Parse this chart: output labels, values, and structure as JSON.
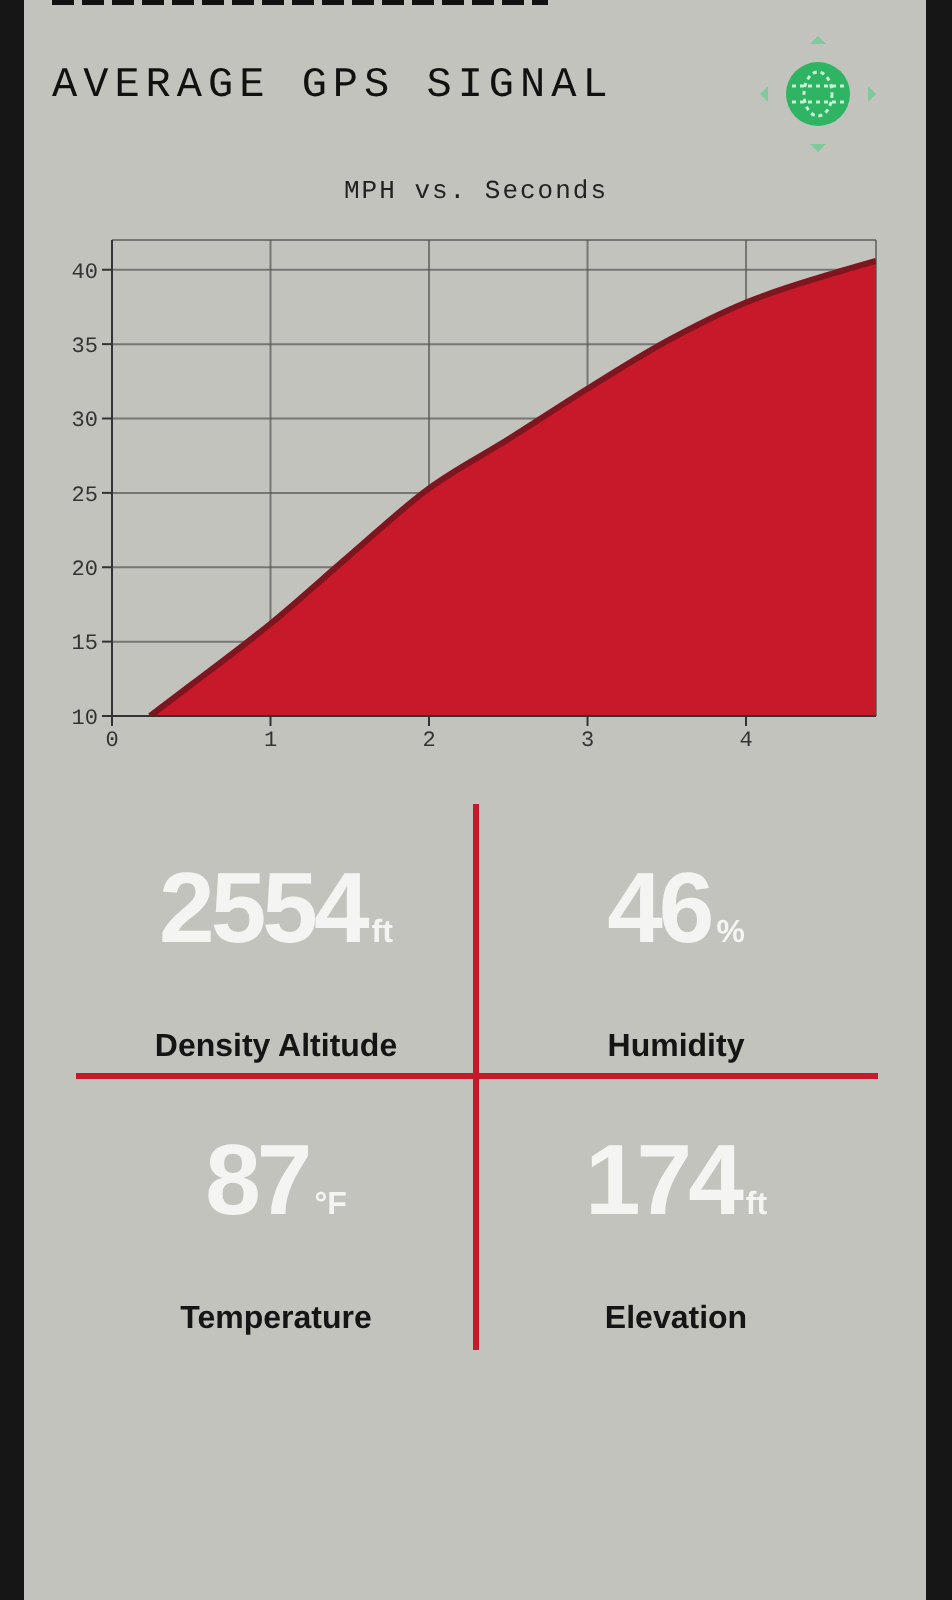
{
  "chart_data": [
    {
      "type": "area",
      "title": "AVERAGE GPS SIGNAL",
      "subtitle": "MPH vs. Seconds",
      "x": [
        0.24,
        0.5,
        1,
        1.5,
        2,
        2.5,
        3,
        3.5,
        4,
        4.5,
        4.82
      ],
      "values": [
        10,
        12.1,
        16.2,
        20.8,
        25.3,
        28.6,
        32,
        35.2,
        37.8,
        39.6,
        40.6
      ],
      "color": "#c8192b",
      "xlim": [
        0,
        4.82
      ],
      "xticks": [
        0,
        1,
        2,
        3,
        4
      ],
      "ylim": [
        10,
        42
      ],
      "yticks": [
        10,
        15,
        20,
        25,
        30,
        35,
        40
      ],
      "grid": true,
      "legend": false,
      "marker": "none",
      "line_style": "solid"
    },
    {
      "type": "other",
      "categories": [
        "Density Altitude",
        "Humidity",
        "Temperature",
        "Elevation"
      ],
      "values": [
        2554,
        46,
        87,
        174
      ],
      "value_labels": [
        "2554ft",
        "46%",
        "87°F",
        "174ft"
      ]
    }
  ]
}
